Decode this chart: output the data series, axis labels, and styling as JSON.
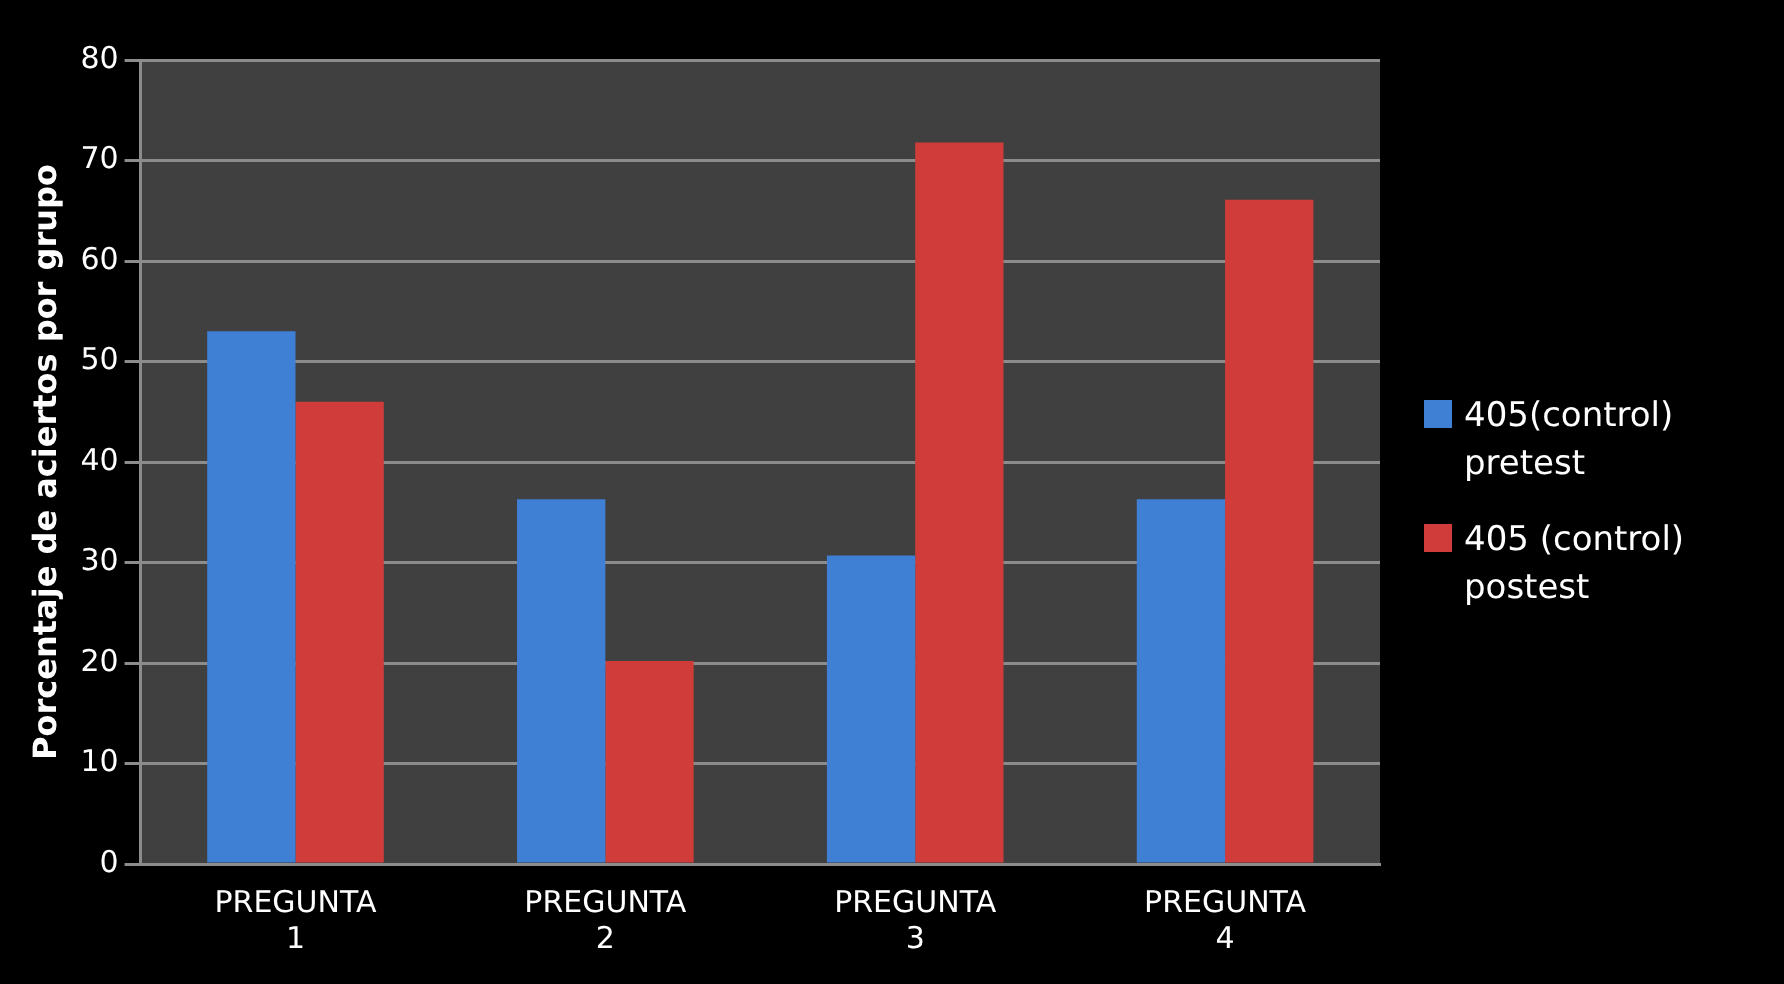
{
  "chart_data": {
    "type": "bar",
    "ylabel": "Porcentaje de aciertos por grupo",
    "categories": [
      "PREGUNTA 1",
      "PREGUNTA 2",
      "PREGUNTA 3",
      "PREGUNTA 4"
    ],
    "series": [
      {
        "name": "405(control) pretest",
        "color": "#3f7fd4",
        "values": [
          53,
          36.3,
          30.7,
          36.3
        ]
      },
      {
        "name": "405 (control) postest",
        "color": "#d03c3a",
        "values": [
          46,
          20.2,
          71.8,
          66.1
        ]
      }
    ],
    "ylim": [
      0,
      80
    ],
    "yticks": [
      0,
      10,
      20,
      30,
      40,
      50,
      60,
      70,
      80
    ],
    "grid": "y",
    "legend": "right"
  }
}
